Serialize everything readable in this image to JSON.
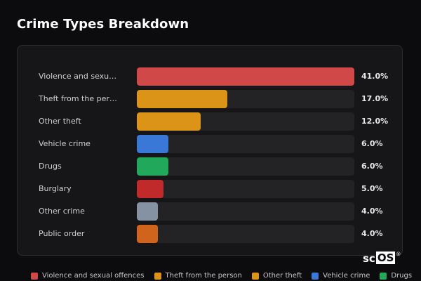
{
  "title": "Crime Types Breakdown",
  "chart_data": {
    "type": "bar",
    "orientation": "horizontal",
    "title": "Crime Types Breakdown",
    "categories": [
      "Violence and sexual offences",
      "Theft from the person",
      "Other theft",
      "Vehicle crime",
      "Drugs",
      "Burglary",
      "Other crime",
      "Public order"
    ],
    "display_labels": [
      "Violence and sexua…",
      "Theft from the per…",
      "Other theft",
      "Vehicle crime",
      "Drugs",
      "Burglary",
      "Other crime",
      "Public order"
    ],
    "values": [
      41.0,
      17.0,
      12.0,
      6.0,
      6.0,
      5.0,
      4.0,
      4.0
    ],
    "value_labels": [
      "41.0%",
      "17.0%",
      "12.0%",
      "6.0%",
      "6.0%",
      "5.0%",
      "4.0%",
      "4.0%"
    ],
    "colors": [
      "#d04848",
      "#dc9418",
      "#dc9418",
      "#3a78d8",
      "#22a85a",
      "#c02a2a",
      "#8592a4",
      "#d0641c"
    ],
    "xlim": [
      0,
      41
    ],
    "legend_position": "bottom",
    "grid": false
  },
  "legend": [
    {
      "label": "Violence and sexual offences",
      "color": "#d04848"
    },
    {
      "label": "Theft from the person",
      "color": "#dc9418"
    },
    {
      "label": "Other theft",
      "color": "#dc9418"
    },
    {
      "label": "Vehicle crime",
      "color": "#3a78d8"
    },
    {
      "label": "Drugs",
      "color": "#22a85a"
    }
  ],
  "watermark": {
    "prefix": "sc",
    "boxed": "OS",
    "mark": "®"
  }
}
